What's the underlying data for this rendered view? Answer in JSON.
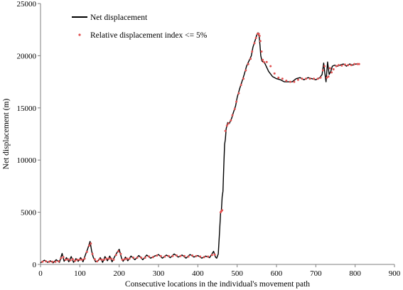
{
  "chart_data": {
    "type": "line",
    "title": "",
    "xlabel": "Consecutive locations in the individual's movement path",
    "ylabel": "Net displacement (m)",
    "xlim": [
      0,
      900
    ],
    "ylim": [
      0,
      25000
    ],
    "xticks": [
      0,
      100,
      200,
      300,
      400,
      500,
      600,
      700,
      800,
      900
    ],
    "yticks": [
      0,
      5000,
      10000,
      15000,
      20000,
      25000
    ],
    "xtick_labels": [
      "0",
      "100",
      "200",
      "300",
      "400",
      "500",
      "600",
      "700",
      "800",
      "900"
    ],
    "ytick_labels": [
      "0",
      "5000",
      "10000",
      "15000",
      "20000",
      "25000"
    ],
    "grid": false,
    "legend_position": "top-left",
    "series": [
      {
        "name": "Net displacement",
        "style": "line",
        "color": "#000000",
        "x": [
          0,
          10,
          18,
          25,
          32,
          40,
          48,
          55,
          60,
          66,
          72,
          78,
          84,
          90,
          96,
          102,
          108,
          114,
          120,
          126,
          130,
          134,
          140,
          146,
          152,
          158,
          164,
          170,
          176,
          182,
          188,
          194,
          200,
          206,
          210,
          216,
          222,
          230,
          240,
          250,
          260,
          270,
          280,
          290,
          300,
          310,
          320,
          330,
          340,
          350,
          360,
          370,
          380,
          390,
          400,
          410,
          420,
          430,
          440,
          445,
          448,
          452,
          455,
          458,
          460,
          462,
          464,
          466,
          468,
          470,
          472,
          476,
          480,
          486,
          490,
          496,
          500,
          506,
          512,
          518,
          524,
          530,
          536,
          540,
          546,
          550,
          553,
          556,
          558,
          560,
          563,
          566,
          570,
          580,
          590,
          600,
          610,
          620,
          630,
          640,
          650,
          660,
          670,
          680,
          690,
          700,
          710,
          716,
          720,
          723,
          726,
          730,
          734,
          738,
          742,
          748,
          755,
          762,
          770,
          778,
          786,
          794,
          802,
          810
        ],
        "y": [
          150,
          400,
          200,
          350,
          150,
          450,
          200,
          1050,
          300,
          650,
          250,
          750,
          200,
          550,
          300,
          650,
          250,
          900,
          1500,
          2200,
          1300,
          700,
          250,
          350,
          650,
          200,
          750,
          350,
          800,
          250,
          700,
          1100,
          1450,
          600,
          300,
          700,
          350,
          800,
          450,
          850,
          450,
          900,
          600,
          800,
          950,
          600,
          900,
          650,
          1000,
          700,
          900,
          600,
          950,
          700,
          850,
          600,
          800,
          650,
          1250,
          700,
          600,
          1000,
          3000,
          5000,
          5200,
          6500,
          7000,
          9500,
          11500,
          12000,
          13000,
          13600,
          13500,
          14000,
          14500,
          15200,
          16000,
          16800,
          17500,
          18200,
          19000,
          19500,
          20000,
          20800,
          21500,
          22000,
          22200,
          21800,
          21000,
          20000,
          19500,
          19400,
          19300,
          18500,
          18000,
          17800,
          17700,
          17500,
          17500,
          17500,
          17800,
          17900,
          17700,
          17900,
          17800,
          17700,
          17900,
          18200,
          19300,
          18300,
          17500,
          19400,
          18200,
          18500,
          19000,
          19100,
          19000,
          19100,
          19200,
          19000,
          19200,
          19100,
          19200,
          19200
        ]
      },
      {
        "name": "Relative displacement index <= 5%",
        "style": "points",
        "color": "#e05050",
        "x": [
          5,
          14,
          22,
          30,
          38,
          46,
          52,
          58,
          64,
          70,
          76,
          82,
          88,
          94,
          100,
          106,
          112,
          118,
          124,
          128,
          132,
          138,
          144,
          150,
          156,
          162,
          168,
          174,
          180,
          186,
          192,
          198,
          204,
          208,
          214,
          220,
          226,
          236,
          246,
          256,
          266,
          276,
          286,
          296,
          306,
          316,
          326,
          336,
          346,
          356,
          366,
          376,
          386,
          396,
          406,
          416,
          426,
          436,
          443,
          458,
          460,
          462,
          470,
          474,
          478,
          484,
          488,
          494,
          498,
          504,
          510,
          516,
          522,
          528,
          534,
          538,
          544,
          548,
          552,
          555,
          557,
          559,
          562,
          565,
          568,
          575,
          585,
          595,
          605,
          615,
          625,
          635,
          645,
          655,
          665,
          675,
          685,
          695,
          705,
          712,
          718,
          722,
          728,
          732,
          736,
          740,
          745,
          752,
          758,
          766,
          774,
          782,
          790,
          798,
          806,
          810
        ],
        "y": [
          250,
          300,
          250,
          250,
          250,
          300,
          600,
          700,
          450,
          500,
          400,
          500,
          350,
          450,
          450,
          450,
          550,
          1200,
          1800,
          2000,
          1000,
          500,
          300,
          500,
          450,
          450,
          550,
          550,
          550,
          450,
          900,
          1250,
          1000,
          450,
          500,
          550,
          550,
          650,
          650,
          650,
          650,
          750,
          700,
          850,
          800,
          750,
          800,
          800,
          850,
          800,
          800,
          750,
          850,
          800,
          750,
          700,
          750,
          900,
          950,
          5000,
          5100,
          5200,
          12800,
          13300,
          13500,
          13800,
          14300,
          14900,
          15600,
          16400,
          17200,
          17800,
          18600,
          19200,
          19700,
          20400,
          21200,
          21700,
          22100,
          22100,
          21900,
          21400,
          20400,
          19600,
          19400,
          19400,
          19000,
          18300,
          17900,
          17800,
          17600,
          17500,
          17500,
          17700,
          17800,
          17800,
          17800,
          17800,
          17800,
          17900,
          18600,
          19000,
          17900,
          18000,
          18800,
          18400,
          18700,
          19000,
          19100,
          19050,
          19150,
          19100,
          19100,
          19200,
          19200,
          19200
        ]
      }
    ]
  }
}
